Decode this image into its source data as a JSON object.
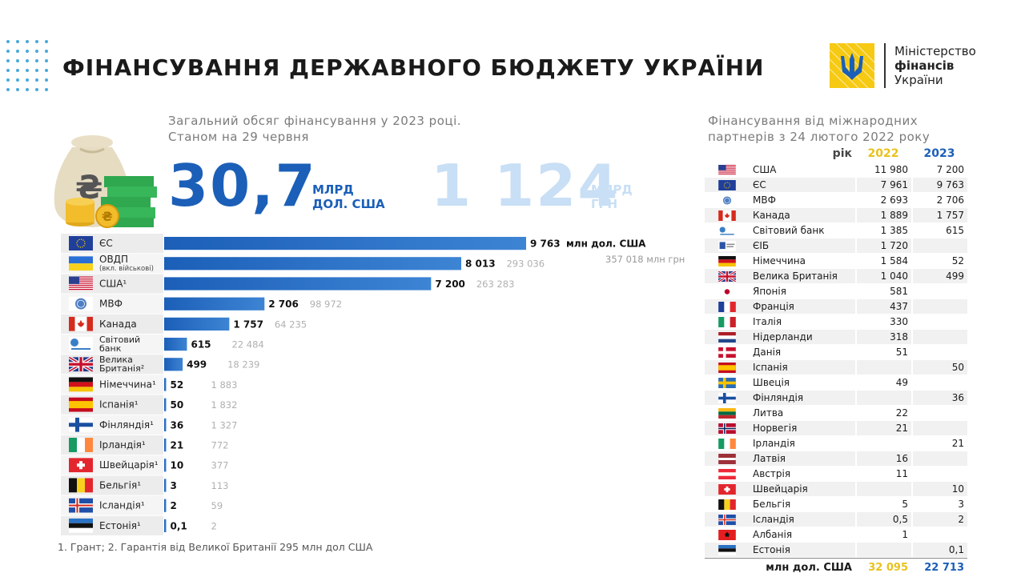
{
  "header": {
    "title": "ФІНАНСУВАННЯ ДЕРЖАВНОГО БЮДЖЕТУ УКРАЇНИ",
    "logo_line1": "Міністерство",
    "logo_line2": "фінансів",
    "logo_line3": "України"
  },
  "summary": {
    "subtitle_line1": "Загальний обсяг фінансування у 2023 році.",
    "subtitle_line2": "Станом на 29 червня",
    "usd_value": "30,7",
    "usd_unit_line1": "МЛРД",
    "usd_unit_line2": "ДОЛ. США",
    "uah_value": "1 124",
    "uah_unit_line1": "МЛРД",
    "uah_unit_line2": "ГРН"
  },
  "footnote": "1. Грант; 2. Гарантія від Великої Британії 295 млн дол США",
  "colors": {
    "bar": "#1b5fb8",
    "bar_light": "#3d84d4",
    "accent_yellow": "#e8c21d",
    "accent_blue": "#1b5fb8",
    "faint_blue": "#c8dff5"
  },
  "chart_data": {
    "type": "bar",
    "orientation": "horizontal",
    "categories": [
      "ЄС",
      "ОВДП",
      "США",
      "МВФ",
      "Канада",
      "Світовий банк",
      "Велика Британія",
      "Німеччина",
      "Іспанія",
      "Фінляндія",
      "Ірландія",
      "Швейцарія",
      "Бельгія",
      "Ісландія",
      "Естонія"
    ],
    "category_notes": [
      "",
      "(вкл. військові)",
      "¹",
      "",
      "",
      "",
      "²",
      "¹",
      "¹",
      "¹",
      "¹",
      "¹",
      "¹",
      "¹",
      "¹"
    ],
    "category_labels": [
      "ЄС",
      "ОВДП",
      "США",
      "МВФ",
      "Канада",
      "Світовий банк",
      "Велика Британія",
      "Німеччина",
      "Іспанія",
      "Фінляндія",
      "Ірландія",
      "Швейцарія",
      "Бельгія",
      "Ісландія",
      "Естонія"
    ],
    "series": [
      {
        "values": [
          9763,
          8013,
          7200,
          2706,
          1757,
          615,
          499,
          52,
          50,
          36,
          21,
          10,
          3,
          2,
          0.1
        ]
      },
      {
        "values": [
          null,
          293036,
          263283,
          98972,
          64235,
          22484,
          18239,
          1883,
          1832,
          1327,
          772,
          377,
          113,
          59,
          2
        ]
      }
    ],
    "value_labels": [
      "9 763",
      "8 013",
      "7 200",
      "2 706",
      "1 757",
      "615",
      "499",
      "52",
      "50",
      "36",
      "21",
      "10",
      "3",
      "2",
      "0,1"
    ],
    "secondary_labels": [
      "357 018 млн грн",
      "293 036",
      "263 283",
      "98 972",
      "64 235",
      "22 484",
      "18 239",
      "1 883",
      "1 832",
      "1 327",
      "772",
      "377",
      "113",
      "59",
      "2"
    ],
    "first_value_unit": "млн дол. США",
    "flags": [
      "eu",
      "ukraine",
      "usa",
      "imf",
      "canada",
      "worldbank",
      "uk",
      "germany",
      "spain",
      "finland",
      "ireland",
      "switzerland",
      "belgium",
      "iceland",
      "estonia"
    ]
  },
  "partners_table": {
    "title_line1": "Фінансування від міжнародних",
    "title_line2": "партнерів з 24 лютого 2022 року",
    "header": {
      "label": "рік",
      "y2022": "2022",
      "y2023": "2023"
    },
    "rows": [
      {
        "flag": "usa",
        "country": "США",
        "y2022": "11 980",
        "y2023": "7 200"
      },
      {
        "flag": "eu",
        "country": "ЄС",
        "y2022": "7 961",
        "y2023": "9 763"
      },
      {
        "flag": "imf",
        "country": "МВФ",
        "y2022": "2 693",
        "y2023": "2 706"
      },
      {
        "flag": "canada",
        "country": "Канада",
        "y2022": "1 889",
        "y2023": "1 757"
      },
      {
        "flag": "worldbank",
        "country": "Світовий банк",
        "y2022": "1 385",
        "y2023": "615"
      },
      {
        "flag": "eib",
        "country": "ЄІБ",
        "y2022": "1 720",
        "y2023": ""
      },
      {
        "flag": "germany",
        "country": "Німеччина",
        "y2022": "1 584",
        "y2023": "52"
      },
      {
        "flag": "uk",
        "country": "Велика Британія",
        "y2022": "1 040",
        "y2023": "499"
      },
      {
        "flag": "japan",
        "country": "Японія",
        "y2022": "581",
        "y2023": ""
      },
      {
        "flag": "france",
        "country": "Франція",
        "y2022": "437",
        "y2023": ""
      },
      {
        "flag": "italy",
        "country": "Італія",
        "y2022": "330",
        "y2023": ""
      },
      {
        "flag": "netherlands",
        "country": "Нідерланди",
        "y2022": "318",
        "y2023": ""
      },
      {
        "flag": "denmark",
        "country": "Данія",
        "y2022": "51",
        "y2023": ""
      },
      {
        "flag": "spain",
        "country": "Іспанія",
        "y2022": "",
        "y2023": "50"
      },
      {
        "flag": "sweden",
        "country": "Швеція",
        "y2022": "49",
        "y2023": ""
      },
      {
        "flag": "finland",
        "country": "Фінляндія",
        "y2022": "",
        "y2023": "36"
      },
      {
        "flag": "lithuania",
        "country": "Литва",
        "y2022": "22",
        "y2023": ""
      },
      {
        "flag": "norway",
        "country": "Норвегія",
        "y2022": "21",
        "y2023": ""
      },
      {
        "flag": "ireland",
        "country": "Ірландія",
        "y2022": "",
        "y2023": "21"
      },
      {
        "flag": "latvia",
        "country": "Латвія",
        "y2022": "16",
        "y2023": ""
      },
      {
        "flag": "austria",
        "country": "Австрія",
        "y2022": "11",
        "y2023": ""
      },
      {
        "flag": "switzerland",
        "country": "Швейцарія",
        "y2022": "",
        "y2023": "10"
      },
      {
        "flag": "belgium",
        "country": "Бельгія",
        "y2022": "5",
        "y2023": "3"
      },
      {
        "flag": "iceland",
        "country": "Ісландія",
        "y2022": "0,5",
        "y2023": "2"
      },
      {
        "flag": "albania",
        "country": "Албанія",
        "y2022": "1",
        "y2023": ""
      },
      {
        "flag": "estonia",
        "country": "Естонія",
        "y2022": "",
        "y2023": "0,1"
      }
    ],
    "total": {
      "label": "млн дол. США",
      "y2022": "32 095",
      "y2023": "22 713"
    }
  }
}
